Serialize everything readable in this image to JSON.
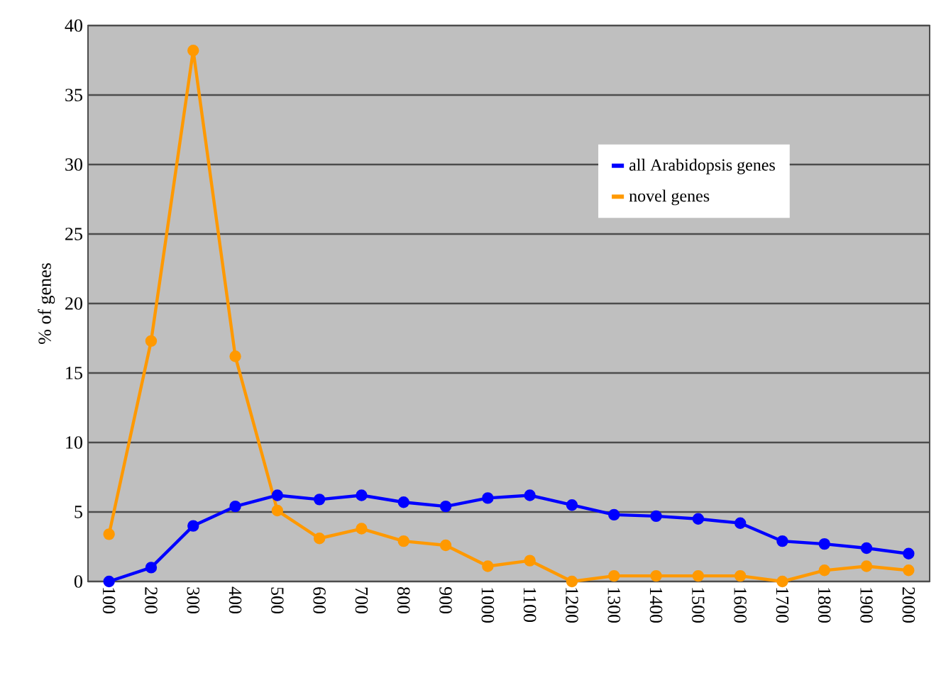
{
  "chart_data": {
    "type": "line",
    "ylabel": "% of genes",
    "categories": [
      "100",
      "200",
      "300",
      "400",
      "500",
      "600",
      "700",
      "800",
      "900",
      "1000",
      "1100",
      "1200",
      "1300",
      "1400",
      "1500",
      "1600",
      "1700",
      "1800",
      "1900",
      "2000"
    ],
    "series": [
      {
        "name": "all Arabidopsis genes",
        "color": "#0000ff",
        "values": [
          0,
          1,
          4,
          5.4,
          6.2,
          5.9,
          6.2,
          5.7,
          5.4,
          6.0,
          6.2,
          5.5,
          4.8,
          4.7,
          4.5,
          4.2,
          2.9,
          2.7,
          2.4,
          2.0
        ]
      },
      {
        "name": "novel genes",
        "color": "#ff9900",
        "values": [
          3.4,
          17.3,
          38.2,
          16.2,
          5.1,
          3.1,
          3.8,
          2.9,
          2.6,
          1.1,
          1.5,
          0,
          0.4,
          0.4,
          0.4,
          0.4,
          0,
          0.8,
          1.1,
          0.8
        ]
      }
    ],
    "ylim": [
      0,
      40
    ],
    "yticks": [
      0,
      5,
      10,
      15,
      20,
      25,
      30,
      35,
      40
    ],
    "grid": "y",
    "legend": "right",
    "marker": "circle",
    "line_style": "solid"
  }
}
